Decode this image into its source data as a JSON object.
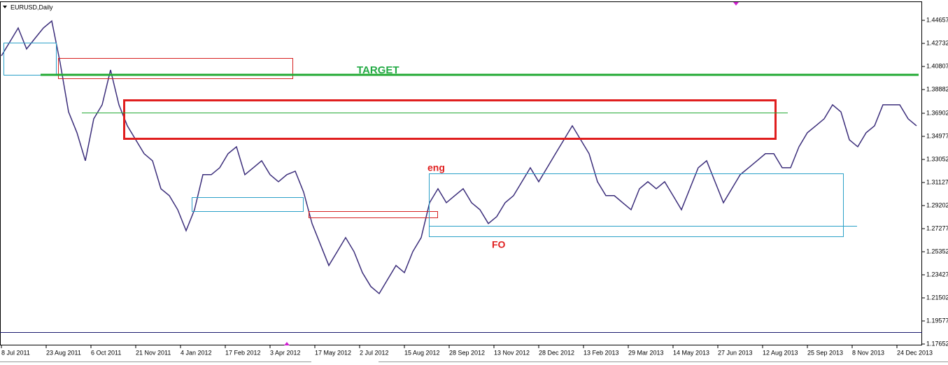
{
  "chart_data": {
    "type": "line",
    "title": "EURUSD,Daily",
    "annotations": [
      "TARGET",
      "eng",
      "FO"
    ],
    "color": "#3b2d7a",
    "x": [
      0,
      6,
      12,
      18,
      24,
      30,
      36,
      42,
      48,
      54,
      60,
      66,
      72,
      78,
      84,
      90,
      96,
      102,
      108,
      114,
      120,
      126,
      132,
      138,
      144,
      150,
      156,
      162,
      168,
      174,
      180,
      186,
      192,
      198,
      204,
      210,
      216,
      222,
      228,
      234,
      240,
      246,
      252,
      258,
      264,
      270,
      276,
      282,
      288,
      294,
      300,
      306,
      312,
      318,
      324,
      330,
      336,
      342,
      348,
      354,
      360,
      366,
      372,
      378,
      384,
      390,
      396,
      402,
      408,
      414,
      420,
      426,
      432,
      438,
      444,
      450,
      456,
      462,
      468,
      474,
      480,
      486,
      492,
      498,
      504,
      510,
      516,
      522,
      528,
      534,
      540,
      546,
      552,
      558,
      564,
      570,
      576,
      582,
      588,
      594,
      600,
      606,
      612,
      618,
      624,
      630,
      636,
      642,
      648,
      654
    ],
    "values": [
      1.4169,
      1.4285,
      1.4402,
      1.4227,
      1.4315,
      1.4402,
      1.446,
      1.411,
      1.3702,
      1.3528,
      1.3294,
      1.3644,
      1.3761,
      1.4052,
      1.3761,
      1.3586,
      1.3469,
      1.3353,
      1.3294,
      1.3061,
      1.3003,
      1.2886,
      1.2711,
      1.2886,
      1.3178,
      1.3178,
      1.3236,
      1.3353,
      1.3411,
      1.3178,
      1.3236,
      1.3294,
      1.3178,
      1.3119,
      1.3178,
      1.3207,
      1.3032,
      1.277,
      1.2595,
      1.242,
      1.2536,
      1.2653,
      1.2536,
      1.2361,
      1.2245,
      1.2186,
      1.2303,
      1.242,
      1.2361,
      1.2536,
      1.2653,
      1.2944,
      1.3061,
      1.2944,
      1.3003,
      1.3061,
      1.2944,
      1.2886,
      1.277,
      1.2828,
      1.2944,
      1.3003,
      1.3119,
      1.3236,
      1.3119,
      1.3236,
      1.3353,
      1.3469,
      1.3586,
      1.3469,
      1.3353,
      1.3119,
      1.3003,
      1.3003,
      1.2944,
      1.2886,
      1.3061,
      1.3119,
      1.3061,
      1.3119,
      1.3003,
      1.2886,
      1.3061,
      1.3236,
      1.3294,
      1.3119,
      1.2944,
      1.3061,
      1.3178,
      1.3236,
      1.3294,
      1.3353,
      1.3353,
      1.3236,
      1.3236,
      1.3411,
      1.3528,
      1.3586,
      1.3644,
      1.3761,
      1.3702,
      1.3469,
      1.3411,
      1.3528,
      1.3586,
      1.3761,
      1.3761,
      1.3761,
      1.3644,
      1.3586
    ],
    "xlim": [
      0,
      658
    ],
    "xticks": [
      {
        "value": 0,
        "label": "8 Jul 2011"
      },
      {
        "value": 32,
        "label": "23 Aug 2011"
      },
      {
        "value": 64,
        "label": "6 Oct 2011"
      },
      {
        "value": 96,
        "label": "21 Nov 2011"
      },
      {
        "value": 128,
        "label": "4 Jan 2012"
      },
      {
        "value": 160,
        "label": "17 Feb 2012"
      },
      {
        "value": 192,
        "label": "3 Apr 2012"
      },
      {
        "value": 224,
        "label": "17 May 2012"
      },
      {
        "value": 256,
        "label": "2 Jul 2012"
      },
      {
        "value": 288,
        "label": "15 Aug 2012"
      },
      {
        "value": 320,
        "label": "28 Sep 2012"
      },
      {
        "value": 352,
        "label": "13 Nov 2012"
      },
      {
        "value": 384,
        "label": "28 Dec 2012"
      },
      {
        "value": 416,
        "label": "13 Feb 2013"
      },
      {
        "value": 448,
        "label": "29 Mar 2013"
      },
      {
        "value": 480,
        "label": "14 May 2013"
      },
      {
        "value": 512,
        "label": "27 Jun 2013"
      },
      {
        "value": 544,
        "label": "12 Aug 2013"
      },
      {
        "value": 576,
        "label": "25 Sep 2013"
      },
      {
        "value": 608,
        "label": "8 Nov 2013"
      },
      {
        "value": 640,
        "label": "24 Dec 2013"
      }
    ],
    "ylim": [
      1.17652,
      1.46177
    ],
    "yticks": [
      1.44657,
      1.42732,
      1.40807,
      1.38882,
      1.36902,
      1.34977,
      1.33052,
      1.31127,
      1.29202,
      1.27277,
      1.25352,
      1.23427,
      1.21502,
      1.19577,
      1.17652
    ]
  }
}
